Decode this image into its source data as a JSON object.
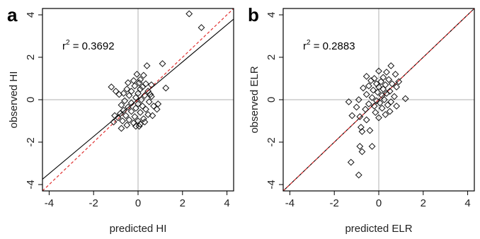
{
  "chart_data": [
    {
      "type": "scatter",
      "panel_label": "a",
      "xlabel": "predicted HI",
      "ylabel": "observed HI",
      "xlim": [
        -4.3,
        4.3
      ],
      "ylim": [
        -4.3,
        4.3
      ],
      "xticks": [
        "-4",
        "-2",
        "0",
        "2",
        "4"
      ],
      "yticks": [
        "-4",
        "-2",
        "0",
        "2",
        "4"
      ],
      "grid": "reference lines at x=0 and y=0",
      "annotation": {
        "prefix": "r",
        "sup": "2",
        "text": " = 0.3692"
      },
      "marker": "open-diamond",
      "lines": [
        {
          "kind": "fit",
          "style": "solid",
          "color": "#000000",
          "points": [
            [
              -4.3,
              -3.75
            ],
            [
              4.3,
              3.8
            ]
          ]
        },
        {
          "kind": "identity",
          "style": "dashed",
          "color": "#e03030",
          "points": [
            [
              -4.3,
              -4.3
            ],
            [
              4.3,
              4.3
            ]
          ]
        }
      ],
      "points": [
        [
          2.3,
          4.05
        ],
        [
          2.85,
          3.4
        ],
        [
          1.1,
          1.7
        ],
        [
          0.4,
          1.6
        ],
        [
          -0.05,
          1.2
        ],
        [
          0.25,
          1.15
        ],
        [
          0.1,
          0.95
        ],
        [
          -0.2,
          0.9
        ],
        [
          -0.45,
          0.8
        ],
        [
          0.05,
          0.8
        ],
        [
          0.35,
          0.75
        ],
        [
          0.6,
          0.7
        ],
        [
          -0.15,
          0.65
        ],
        [
          0.2,
          0.6
        ],
        [
          -1.2,
          0.6
        ],
        [
          1.25,
          0.55
        ],
        [
          -0.5,
          0.5
        ],
        [
          0.1,
          0.5
        ],
        [
          -1.0,
          0.4
        ],
        [
          -0.3,
          0.4
        ],
        [
          0.45,
          0.4
        ],
        [
          -0.65,
          0.3
        ],
        [
          0.0,
          0.3
        ],
        [
          -0.85,
          0.25
        ],
        [
          -0.4,
          0.2
        ],
        [
          0.3,
          0.2
        ],
        [
          0.55,
          0.25
        ],
        [
          0.6,
          0.15
        ],
        [
          -0.1,
          0.1
        ],
        [
          0.15,
          0.0
        ],
        [
          -0.6,
          -0.05
        ],
        [
          0.5,
          -0.1
        ],
        [
          -0.3,
          -0.15
        ],
        [
          0.0,
          -0.2
        ],
        [
          -0.75,
          -0.25
        ],
        [
          0.2,
          -0.3
        ],
        [
          0.7,
          -0.3
        ],
        [
          -0.45,
          -0.35
        ],
        [
          -0.1,
          -0.4
        ],
        [
          0.35,
          -0.45
        ],
        [
          -0.65,
          -0.5
        ],
        [
          0.85,
          -0.45
        ],
        [
          -0.3,
          -0.55
        ],
        [
          0.1,
          -0.6
        ],
        [
          -0.8,
          -0.65
        ],
        [
          0.45,
          -0.7
        ],
        [
          -0.55,
          -0.75
        ],
        [
          -0.15,
          -0.8
        ],
        [
          0.65,
          -0.75
        ],
        [
          -0.9,
          -0.85
        ],
        [
          0.25,
          -0.9
        ],
        [
          -0.4,
          -0.95
        ],
        [
          0.0,
          -1.0
        ],
        [
          -0.7,
          -1.0
        ],
        [
          0.3,
          -1.05
        ],
        [
          -1.1,
          -1.05
        ],
        [
          -0.2,
          -1.1
        ],
        [
          0.1,
          -1.15
        ],
        [
          -0.5,
          -1.2
        ],
        [
          0.05,
          -1.25
        ],
        [
          -0.1,
          -1.25
        ],
        [
          -0.75,
          -1.35
        ],
        [
          0.9,
          -0.2
        ],
        [
          -1.05,
          -0.75
        ]
      ]
    },
    {
      "type": "scatter",
      "panel_label": "b",
      "xlabel": "predicted ELR",
      "ylabel": "observed ELR",
      "xlim": [
        -4.3,
        4.3
      ],
      "ylim": [
        -4.3,
        4.3
      ],
      "xticks": [
        "-4",
        "-2",
        "0",
        "2",
        "4"
      ],
      "yticks": [
        "-4",
        "-2",
        "0",
        "2",
        "4"
      ],
      "grid": "reference lines at x=0 and y=0",
      "annotation": {
        "prefix": "r",
        "sup": "2",
        "text": " = 0.2883"
      },
      "marker": "open-diamond",
      "lines": [
        {
          "kind": "fit",
          "style": "solid",
          "color": "#000000",
          "points": [
            [
              -4.3,
              -4.3
            ],
            [
              4.3,
              4.3
            ]
          ]
        },
        {
          "kind": "identity",
          "style": "dashed",
          "color": "#e03030",
          "points": [
            [
              -4.3,
              -4.3
            ],
            [
              4.3,
              4.3
            ]
          ]
        }
      ],
      "points": [
        [
          0.55,
          1.6
        ],
        [
          0.0,
          1.35
        ],
        [
          0.35,
          1.3
        ],
        [
          0.75,
          1.2
        ],
        [
          -0.55,
          1.1
        ],
        [
          0.2,
          1.05
        ],
        [
          -0.2,
          1.0
        ],
        [
          0.45,
          0.95
        ],
        [
          -0.35,
          0.9
        ],
        [
          0.9,
          0.85
        ],
        [
          0.1,
          0.85
        ],
        [
          -0.1,
          0.75
        ],
        [
          0.6,
          0.75
        ],
        [
          0.3,
          0.7
        ],
        [
          -0.45,
          0.65
        ],
        [
          0.0,
          0.6
        ],
        [
          0.8,
          0.6
        ],
        [
          -0.7,
          0.55
        ],
        [
          0.2,
          0.5
        ],
        [
          -0.25,
          0.45
        ],
        [
          0.5,
          0.4
        ],
        [
          -0.05,
          0.35
        ],
        [
          0.35,
          0.3
        ],
        [
          -0.55,
          0.25
        ],
        [
          0.15,
          0.2
        ],
        [
          0.7,
          0.15
        ],
        [
          -0.3,
          0.1
        ],
        [
          1.2,
          0.05
        ],
        [
          0.25,
          0.0
        ],
        [
          -0.9,
          0.0
        ],
        [
          -0.1,
          -0.05
        ],
        [
          0.55,
          -0.1
        ],
        [
          -1.35,
          -0.1
        ],
        [
          0.05,
          -0.15
        ],
        [
          -0.45,
          -0.2
        ],
        [
          0.4,
          -0.25
        ],
        [
          -0.2,
          -0.3
        ],
        [
          0.8,
          -0.3
        ],
        [
          -1.0,
          -0.35
        ],
        [
          0.15,
          -0.4
        ],
        [
          -0.6,
          -0.45
        ],
        [
          0.5,
          -0.55
        ],
        [
          -0.15,
          -0.6
        ],
        [
          0.3,
          -0.7
        ],
        [
          -1.2,
          -0.75
        ],
        [
          -0.85,
          -0.8
        ],
        [
          0.0,
          -0.85
        ],
        [
          -0.55,
          -0.95
        ],
        [
          -0.8,
          -1.3
        ],
        [
          -0.4,
          -1.45
        ],
        [
          -0.75,
          -1.5
        ],
        [
          -0.85,
          -2.2
        ],
        [
          -0.3,
          -2.2
        ],
        [
          -0.75,
          -2.45
        ],
        [
          -1.25,
          -2.95
        ],
        [
          -0.9,
          -3.55
        ]
      ]
    }
  ]
}
